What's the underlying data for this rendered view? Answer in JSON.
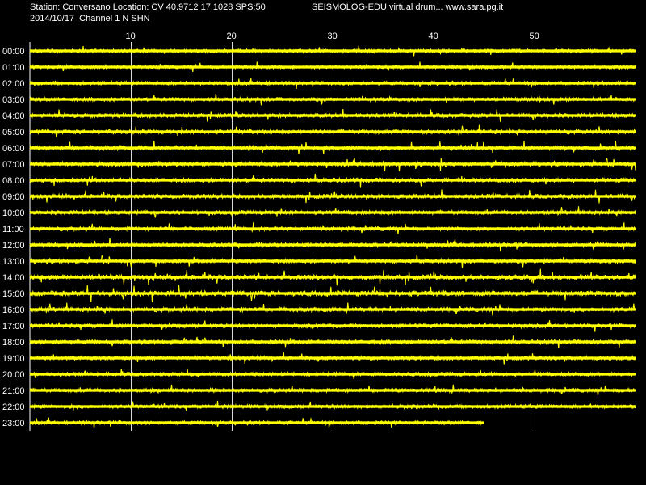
{
  "header": {
    "station_line": "Station: Conversano Location: CV 40.9712 17.1028 SPS:50",
    "date_line": "2014/10/17  Channel 1 N SHN",
    "right_title": "SEISMOLOG-EDU virtual drum... www.sara.pg.it"
  },
  "colors": {
    "background": "#000000",
    "trace": "#ffff00",
    "grid": "#ffffff",
    "text": "#ffffff"
  },
  "chart_data": {
    "type": "line",
    "title": "",
    "xlabel": "",
    "ylabel": "",
    "x_ticks": [
      "10",
      "20",
      "30",
      "40",
      "50"
    ],
    "x_range": [
      0,
      60
    ],
    "grid": "vertical lines at x ticks",
    "row_labels": [
      "00:00",
      "01:00",
      "02:00",
      "03:00",
      "04:00",
      "05:00",
      "06:00",
      "07:00",
      "08:00",
      "09:00",
      "10:00",
      "11:00",
      "12:00",
      "13:00",
      "14:00",
      "15:00",
      "16:00",
      "17:00",
      "18:00",
      "19:00",
      "20:00",
      "21:00",
      "22:00",
      "23:00"
    ],
    "rows_end_minute": [
      60,
      60,
      60,
      60,
      60,
      60,
      60,
      60,
      60,
      60,
      60,
      60,
      60,
      60,
      60,
      60,
      60,
      60,
      60,
      60,
      60,
      60,
      60,
      45
    ],
    "row_activity": [
      0.3,
      0.3,
      0.4,
      0.4,
      0.5,
      0.6,
      0.7,
      0.7,
      0.6,
      0.6,
      0.5,
      0.5,
      0.6,
      0.6,
      0.9,
      1.0,
      0.6,
      0.5,
      0.5,
      0.5,
      0.4,
      0.4,
      0.4,
      0.4
    ]
  }
}
